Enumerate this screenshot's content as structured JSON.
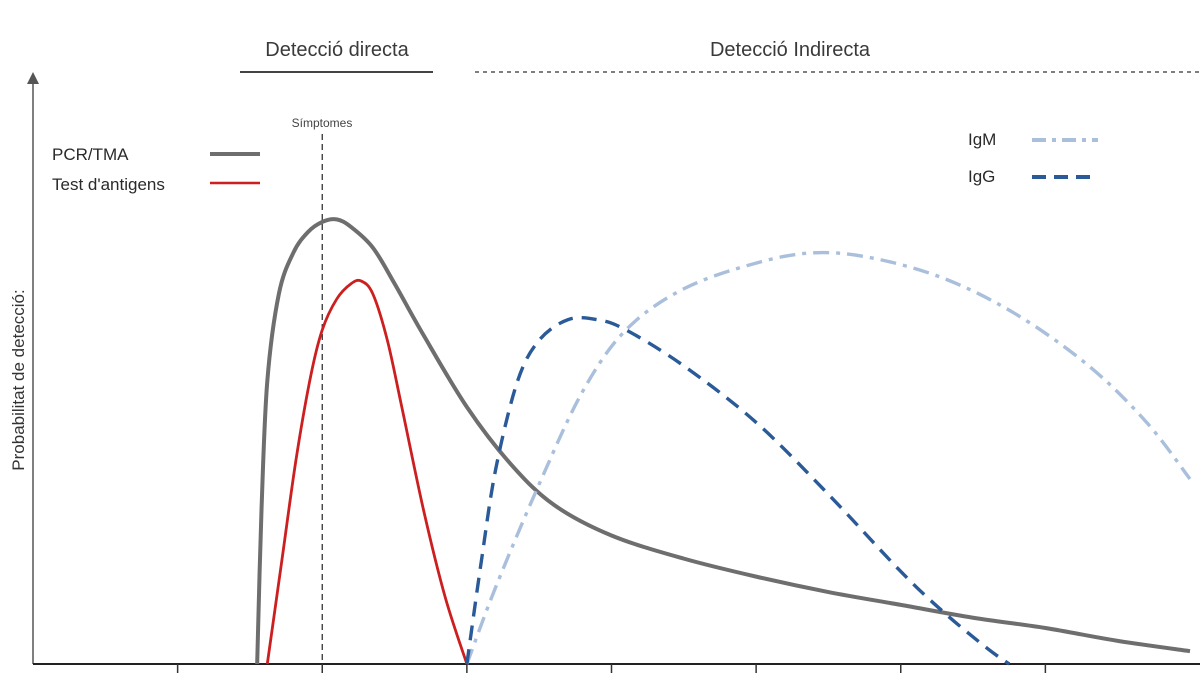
{
  "chart_data": {
    "type": "line",
    "title": "",
    "ylabel": "Probabilitat de detecció:",
    "xlabel": "",
    "xlim": [
      0,
      8
    ],
    "ylim": [
      0,
      1
    ],
    "grid": false,
    "header": {
      "direct": "Detecció directa",
      "indirect": "Detecció Indirecta"
    },
    "annotations": {
      "symptoms": {
        "label": "Símptomes",
        "x": 2.0
      }
    },
    "legend": {
      "left": [
        "PCR/TMA",
        "Test d'antigens"
      ],
      "right": [
        "IgM",
        "IgG"
      ],
      "placement": "top-left and top-right"
    },
    "series": [
      {
        "name": "PCR/TMA",
        "color": "#6e6e6e",
        "style": "solid",
        "x": [
          1.55,
          1.58,
          1.62,
          1.7,
          1.8,
          1.9,
          2.0,
          2.1,
          2.2,
          2.35,
          2.5,
          2.7,
          3.0,
          3.3,
          3.6,
          4.0,
          4.5,
          5.0,
          5.5,
          6.0,
          6.5,
          7.0,
          7.5,
          8.0
        ],
        "y": [
          0.0,
          0.3,
          0.55,
          0.72,
          0.8,
          0.84,
          0.86,
          0.865,
          0.85,
          0.81,
          0.74,
          0.64,
          0.5,
          0.39,
          0.31,
          0.25,
          0.205,
          0.17,
          0.14,
          0.115,
          0.09,
          0.07,
          0.045,
          0.025
        ]
      },
      {
        "name": "Test d'antigens",
        "color": "#cc1f1f",
        "style": "solid",
        "x": [
          1.62,
          1.72,
          1.82,
          1.92,
          2.0,
          2.1,
          2.2,
          2.27,
          2.35,
          2.45,
          2.55,
          2.7,
          2.85,
          3.0
        ],
        "y": [
          0.0,
          0.2,
          0.4,
          0.56,
          0.65,
          0.71,
          0.74,
          0.745,
          0.72,
          0.63,
          0.5,
          0.3,
          0.13,
          0.0
        ]
      },
      {
        "name": "IgM",
        "color": "#a9bfdb",
        "style": "dashdot",
        "x": [
          3.0,
          3.2,
          3.5,
          3.8,
          4.1,
          4.5,
          5.0,
          5.4,
          5.8,
          6.3,
          6.8,
          7.3,
          7.7,
          8.0
        ],
        "y": [
          0.0,
          0.15,
          0.35,
          0.53,
          0.65,
          0.73,
          0.78,
          0.8,
          0.79,
          0.75,
          0.68,
          0.58,
          0.47,
          0.36
        ]
      },
      {
        "name": "IgG",
        "color": "#2a5a97",
        "style": "dashed",
        "x": [
          3.0,
          3.1,
          3.2,
          3.35,
          3.5,
          3.7,
          3.9,
          4.1,
          4.5,
          5.0,
          5.5,
          6.0,
          6.3,
          6.6,
          6.75
        ],
        "y": [
          0.0,
          0.2,
          0.38,
          0.55,
          0.63,
          0.67,
          0.67,
          0.65,
          0.58,
          0.47,
          0.33,
          0.18,
          0.1,
          0.03,
          0.0
        ]
      }
    ],
    "xticks": [
      1,
      2,
      3,
      4,
      5,
      6,
      7
    ]
  }
}
